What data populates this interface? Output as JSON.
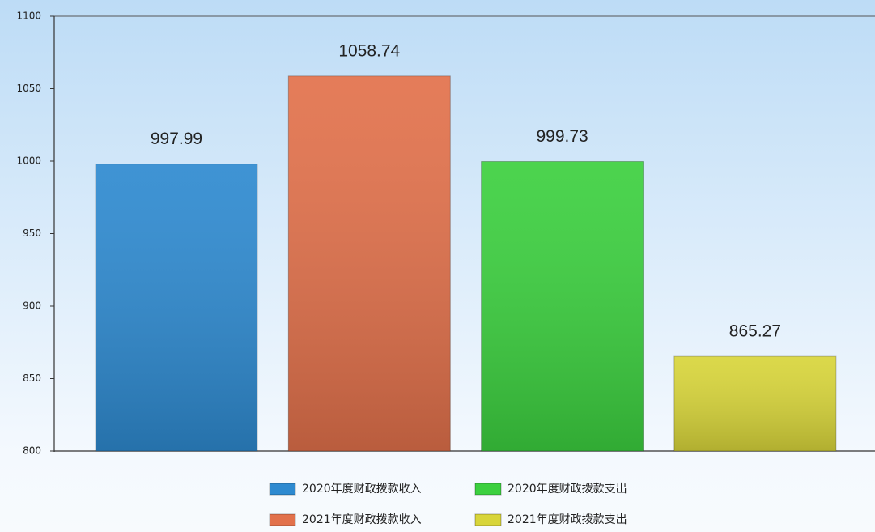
{
  "chart_data": {
    "type": "bar",
    "series": [
      {
        "name": "2020年度财政拨款收入",
        "color": "#2e8ad0",
        "values": [
          997.99
        ]
      },
      {
        "name": "2021年度财政拨款收入",
        "color": "#e2714b",
        "values": [
          1058.74
        ]
      },
      {
        "name": "2020年度财政拨款支出",
        "color": "#3cd03f",
        "values": [
          999.73
        ]
      },
      {
        "name": "2021年度财政拨款支出",
        "color": "#d8d53a",
        "values": [
          865.27
        ]
      }
    ],
    "ylim": [
      800,
      1100
    ],
    "yticks": [
      800,
      850,
      900,
      950,
      1000,
      1050,
      1100
    ],
    "grid": false
  }
}
